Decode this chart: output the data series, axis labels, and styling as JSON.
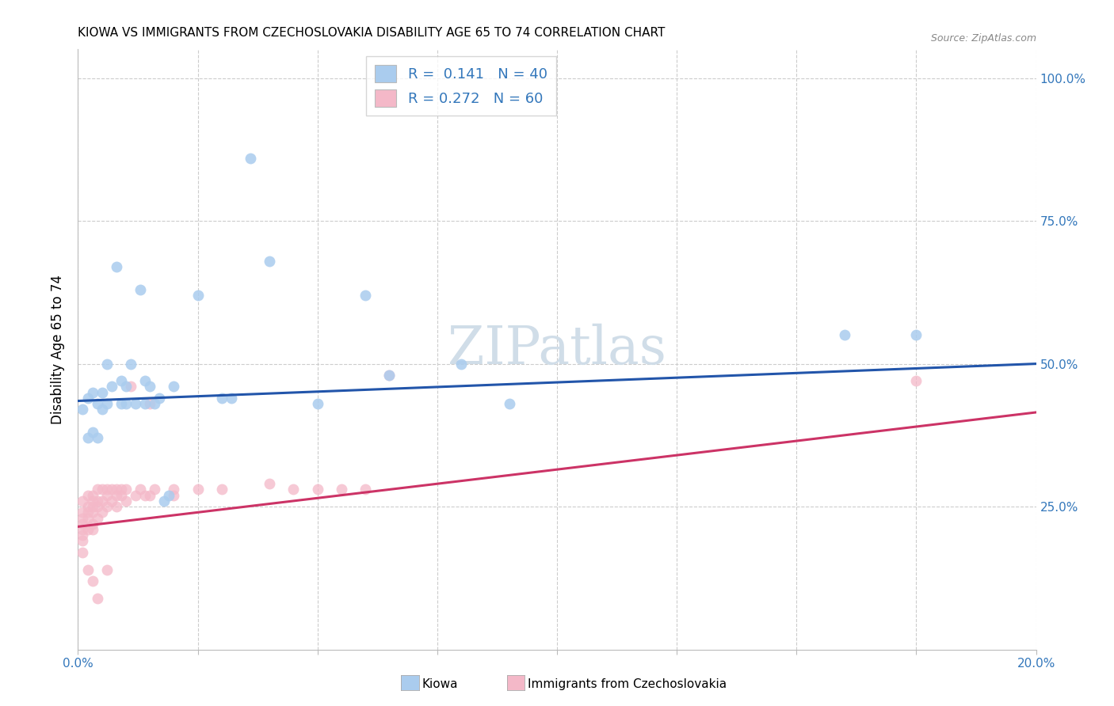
{
  "title": "KIOWA VS IMMIGRANTS FROM CZECHOSLOVAKIA DISABILITY AGE 65 TO 74 CORRELATION CHART",
  "source": "Source: ZipAtlas.com",
  "ylabel": "Disability Age 65 to 74",
  "ylabel_right_ticks": [
    "100.0%",
    "75.0%",
    "50.0%",
    "25.0%"
  ],
  "ylabel_right_vals": [
    1.0,
    0.75,
    0.5,
    0.25
  ],
  "legend_r1": "R =  0.141",
  "legend_n1": "N = 40",
  "legend_r2": "R = 0.272",
  "legend_n2": "N = 60",
  "xlim": [
    0.0,
    0.2
  ],
  "ylim": [
    0.0,
    1.05
  ],
  "color_kiowa": "#aaccee",
  "color_immig": "#f4b8c8",
  "line_color_kiowa": "#2255aa",
  "line_color_immig": "#cc3366",
  "kiowa_x": [
    0.001,
    0.002,
    0.002,
    0.003,
    0.003,
    0.004,
    0.004,
    0.005,
    0.005,
    0.006,
    0.006,
    0.007,
    0.008,
    0.009,
    0.009,
    0.01,
    0.01,
    0.011,
    0.012,
    0.013,
    0.014,
    0.014,
    0.015,
    0.016,
    0.017,
    0.018,
    0.019,
    0.02,
    0.025,
    0.03,
    0.032,
    0.036,
    0.04,
    0.05,
    0.06,
    0.065,
    0.08,
    0.09,
    0.16,
    0.175
  ],
  "kiowa_y": [
    0.42,
    0.44,
    0.37,
    0.45,
    0.38,
    0.43,
    0.37,
    0.45,
    0.42,
    0.5,
    0.43,
    0.46,
    0.67,
    0.43,
    0.47,
    0.46,
    0.43,
    0.5,
    0.43,
    0.63,
    0.47,
    0.43,
    0.46,
    0.43,
    0.44,
    0.26,
    0.27,
    0.46,
    0.62,
    0.44,
    0.44,
    0.86,
    0.68,
    0.43,
    0.62,
    0.48,
    0.5,
    0.43,
    0.55,
    0.55
  ],
  "immig_x": [
    0.001,
    0.001,
    0.001,
    0.001,
    0.001,
    0.001,
    0.001,
    0.002,
    0.002,
    0.002,
    0.002,
    0.002,
    0.003,
    0.003,
    0.003,
    0.003,
    0.003,
    0.003,
    0.004,
    0.004,
    0.004,
    0.004,
    0.005,
    0.005,
    0.005,
    0.006,
    0.006,
    0.006,
    0.007,
    0.007,
    0.008,
    0.008,
    0.008,
    0.009,
    0.009,
    0.01,
    0.01,
    0.011,
    0.012,
    0.013,
    0.014,
    0.015,
    0.015,
    0.016,
    0.02,
    0.02,
    0.025,
    0.03,
    0.04,
    0.045,
    0.05,
    0.055,
    0.06,
    0.065,
    0.001,
    0.002,
    0.003,
    0.004,
    0.006,
    0.175
  ],
  "immig_y": [
    0.26,
    0.24,
    0.23,
    0.22,
    0.21,
    0.2,
    0.19,
    0.27,
    0.25,
    0.24,
    0.23,
    0.21,
    0.27,
    0.26,
    0.25,
    0.24,
    0.22,
    0.21,
    0.28,
    0.26,
    0.25,
    0.23,
    0.28,
    0.26,
    0.24,
    0.28,
    0.27,
    0.25,
    0.28,
    0.26,
    0.28,
    0.27,
    0.25,
    0.28,
    0.27,
    0.28,
    0.26,
    0.46,
    0.27,
    0.28,
    0.27,
    0.43,
    0.27,
    0.28,
    0.28,
    0.27,
    0.28,
    0.28,
    0.29,
    0.28,
    0.28,
    0.28,
    0.28,
    0.48,
    0.17,
    0.14,
    0.12,
    0.09,
    0.14,
    0.47
  ],
  "kiowa_line_x0": 0.0,
  "kiowa_line_y0": 0.435,
  "kiowa_line_x1": 0.2,
  "kiowa_line_y1": 0.5,
  "immig_line_x0": 0.0,
  "immig_line_y0": 0.215,
  "immig_line_x1": 0.2,
  "immig_line_y1": 0.415
}
